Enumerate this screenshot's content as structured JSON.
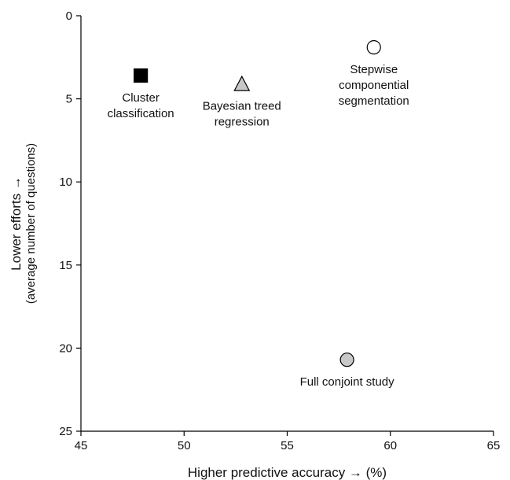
{
  "chart_data": {
    "type": "scatter",
    "title": "",
    "xlabel": "Higher predictive accuracy → (%)",
    "ylabel": "Lower efforts →",
    "ylabel_sub": "(average number of questions)",
    "xlim": [
      45,
      65
    ],
    "ylim": [
      0,
      25
    ],
    "y_inverted": true,
    "xticks": [
      45,
      50,
      55,
      60,
      65
    ],
    "yticks": [
      0,
      5,
      10,
      15,
      20,
      25
    ],
    "grid": false,
    "points": [
      {
        "label_lines": [
          "Cluster",
          "classification"
        ],
        "x": 47.9,
        "y": 3.6,
        "marker": "square",
        "fill": "#000000"
      },
      {
        "label_lines": [
          "Bayesian treed",
          "regression"
        ],
        "x": 52.8,
        "y": 4.1,
        "marker": "triangle",
        "fill": "#c8c8c8"
      },
      {
        "label_lines": [
          "Stepwise",
          "componential",
          "segmentation"
        ],
        "x": 59.2,
        "y": 1.9,
        "marker": "circle",
        "fill": "#ffffff"
      },
      {
        "label_lines": [
          "Full conjoint study"
        ],
        "x": 57.9,
        "y": 20.7,
        "marker": "circle",
        "fill": "#c8c8c8"
      }
    ]
  }
}
